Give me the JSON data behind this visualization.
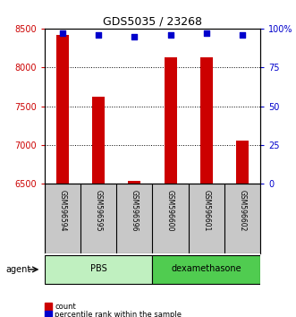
{
  "title": "GDS5035 / 23268",
  "samples": [
    "GSM596594",
    "GSM596595",
    "GSM596596",
    "GSM596600",
    "GSM596601",
    "GSM596602"
  ],
  "counts": [
    8420,
    7620,
    6540,
    8130,
    8130,
    7060
  ],
  "percentiles": [
    97,
    96,
    95,
    96,
    97,
    96
  ],
  "ylim_left": [
    6500,
    8500
  ],
  "ylim_right": [
    0,
    100
  ],
  "yticks_left": [
    6500,
    7000,
    7500,
    8000,
    8500
  ],
  "yticks_right": [
    0,
    25,
    50,
    75,
    100
  ],
  "yticklabels_right": [
    "0",
    "25",
    "50",
    "75",
    "100%"
  ],
  "bar_color": "#CC0000",
  "dot_color": "#0000CC",
  "bar_width": 0.35,
  "left_tick_color": "#CC0000",
  "right_tick_color": "#0000CC",
  "background_color": "#ffffff",
  "sample_box_color": "#C8C8C8",
  "pbs_color": "#c0f0c0",
  "dex_color": "#50cc50",
  "agent_label": "agent",
  "legend_count_label": "count",
  "legend_percentile_label": "percentile rank within the sample",
  "title_fontsize": 9,
  "tick_fontsize": 7,
  "sample_fontsize": 5.5,
  "group_fontsize": 7,
  "legend_fontsize": 6
}
